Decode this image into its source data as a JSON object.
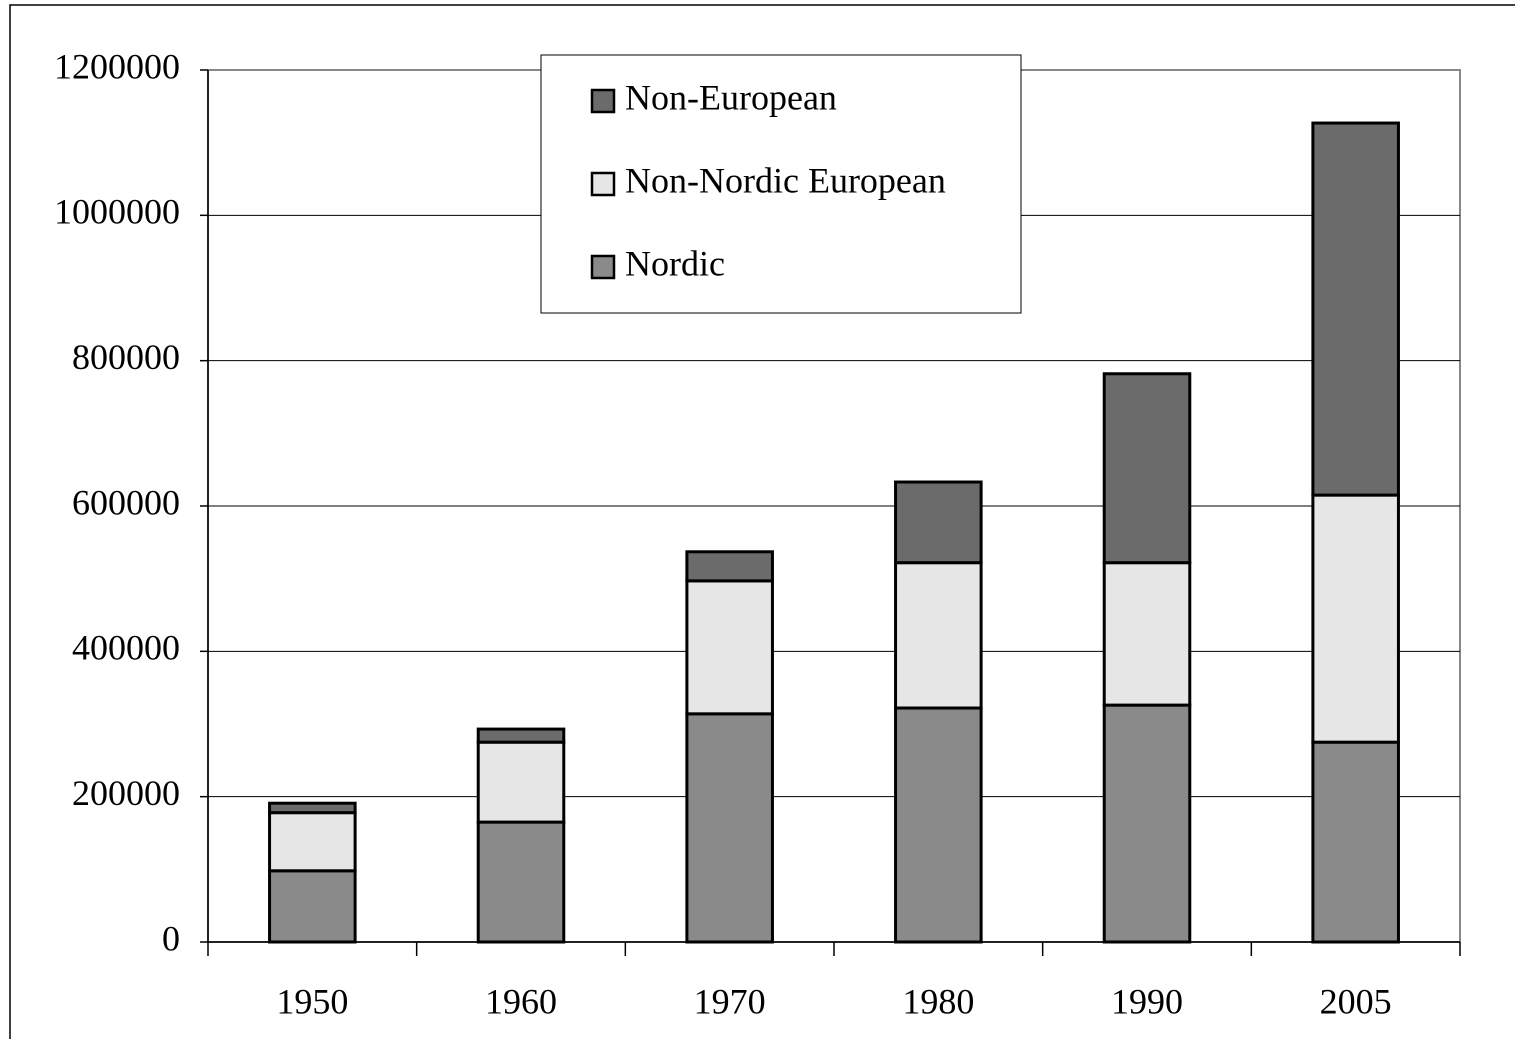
{
  "chart_data": {
    "type": "stacked_bar",
    "categories": [
      "1950",
      "1960",
      "1970",
      "1980",
      "1990",
      "2005"
    ],
    "series": [
      {
        "name": "Nordic",
        "color": "#8a8a8a",
        "values": [
          98000,
          165000,
          314000,
          322000,
          326000,
          275000
        ]
      },
      {
        "name": "Non-Nordic European",
        "color": "#e6e6e6",
        "values": [
          80000,
          110000,
          183000,
          200000,
          196000,
          340000
        ]
      },
      {
        "name": "Non-European",
        "color": "#6b6b6b",
        "values": [
          13000,
          18000,
          40000,
          111000,
          260000,
          512000
        ]
      }
    ],
    "ylim": [
      0,
      1200000
    ],
    "yticks": [
      0,
      200000,
      400000,
      600000,
      800000,
      1000000,
      1200000
    ],
    "grid": true,
    "legend": "top"
  }
}
